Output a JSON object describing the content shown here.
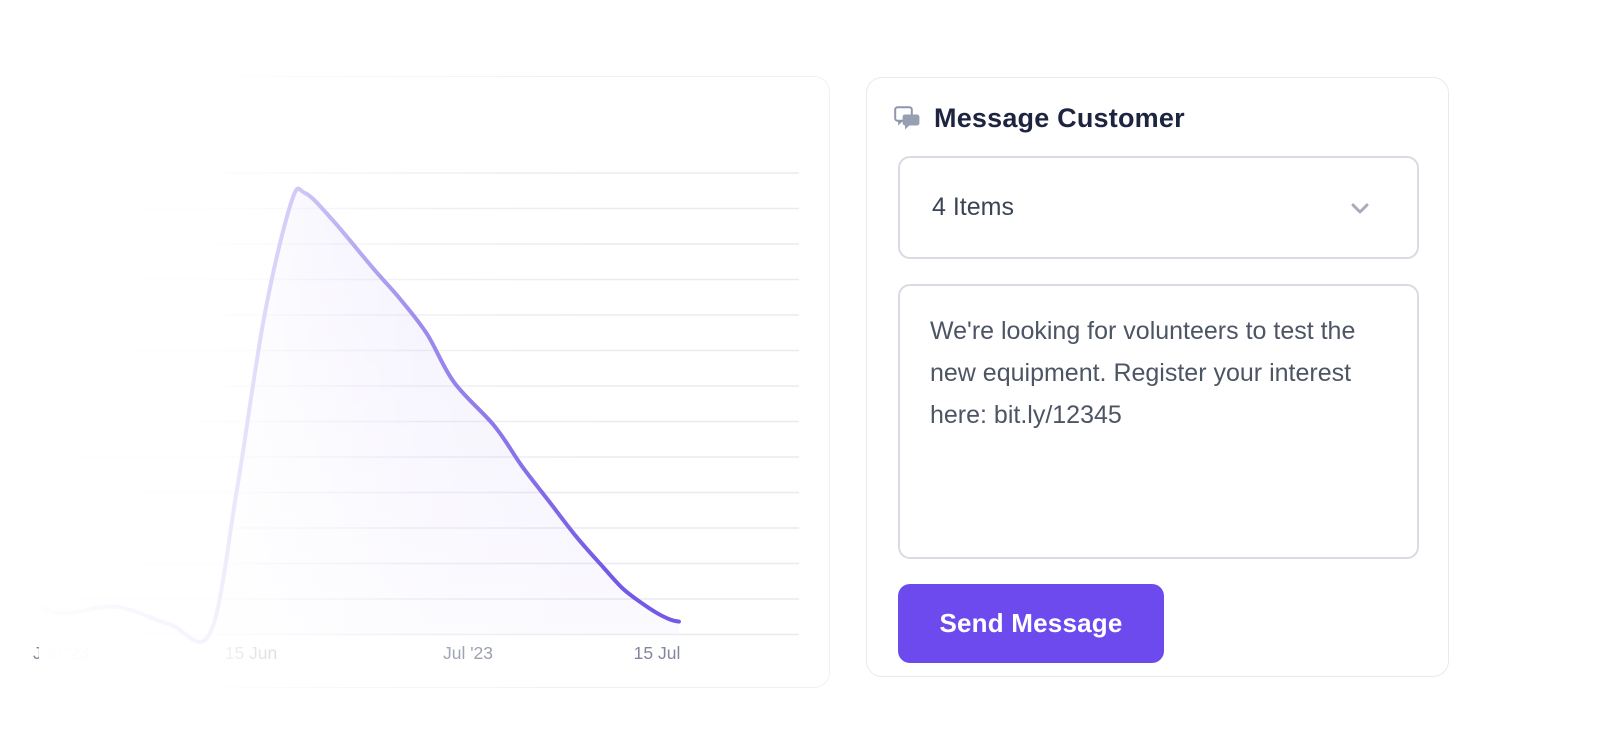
{
  "chart_card": {
    "chart_data": {
      "type": "area",
      "title": "",
      "xlabel": "",
      "ylabel": "",
      "ylim": [
        0,
        100
      ],
      "grid": true,
      "legend": false,
      "line_color": "#7559e6",
      "fill_color": "#7a5fe6",
      "x_ticks": [
        {
          "label": "Jun '23",
          "day": 3
        },
        {
          "label": "15 Jun",
          "day": 17
        },
        {
          "label": "Jul '23",
          "day": 33
        },
        {
          "label": "15 Jul",
          "day": 47
        }
      ],
      "points": [
        {
          "day": 0,
          "value": 8
        },
        {
          "day": 3,
          "value": 4.5
        },
        {
          "day": 7,
          "value": 6
        },
        {
          "day": 11,
          "value": 2
        },
        {
          "day": 14,
          "value": 0
        },
        {
          "day": 16,
          "value": 33
        },
        {
          "day": 18,
          "value": 72
        },
        {
          "day": 20,
          "value": 98
        },
        {
          "day": 21,
          "value": 100
        },
        {
          "day": 23,
          "value": 94
        },
        {
          "day": 26,
          "value": 83
        },
        {
          "day": 28,
          "value": 76
        },
        {
          "day": 30,
          "value": 68
        },
        {
          "day": 32,
          "value": 57
        },
        {
          "day": 35,
          "value": 47
        },
        {
          "day": 37,
          "value": 38
        },
        {
          "day": 39,
          "value": 30
        },
        {
          "day": 41,
          "value": 22
        },
        {
          "day": 43,
          "value": 15
        },
        {
          "day": 44.5,
          "value": 10
        },
        {
          "day": 46,
          "value": 6.5
        },
        {
          "day": 47,
          "value": 4.5
        },
        {
          "day": 48,
          "value": 3
        },
        {
          "day": 48.6,
          "value": 2.6
        }
      ]
    }
  },
  "message_card": {
    "title": "Message Customer",
    "items_select": {
      "value": "4 Items"
    },
    "message_input": {
      "value": "We're looking for volunteers to test the new equipment. Register your interest here: bit.ly/12345"
    },
    "send_button": {
      "label": "Send Message"
    }
  },
  "colors": {
    "accent": "#6d4aee",
    "chart_line": "#7559e6",
    "title_text": "#1c2440",
    "field_border": "#d9dbe3",
    "axis_label": "#82889c"
  }
}
